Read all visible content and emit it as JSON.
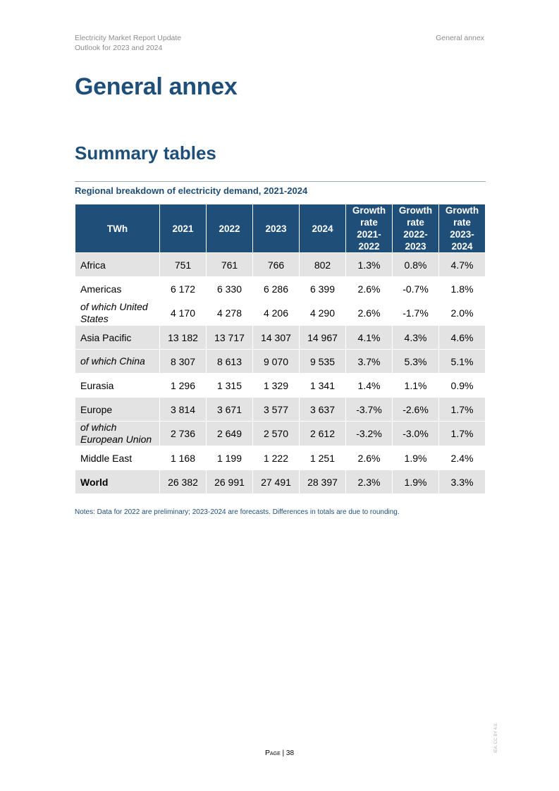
{
  "header": {
    "report_title": "Electricity Market Report Update",
    "subtitle": "Outlook for 2023 and 2024",
    "section": "General annex"
  },
  "page_title": "General annex",
  "section_title": "Summary tables",
  "table": {
    "caption": "Regional breakdown of electricity demand, 2021-2024",
    "headers": [
      "TWh",
      "2021",
      "2022",
      "2023",
      "2024",
      "Growth rate 2021-2022",
      "Growth rate 2022-2023",
      "Growth rate 2023-2024"
    ],
    "rows": [
      {
        "label": "Africa",
        "cells": [
          "751",
          "761",
          "766",
          "802",
          "1.3%",
          "0.8%",
          "4.7%"
        ]
      },
      {
        "label": "Americas",
        "cells": [
          "6 172",
          "6 330",
          "6 286",
          "6 399",
          "2.6%",
          "-0.7%",
          "1.8%"
        ]
      },
      {
        "label": "of which United States",
        "cells": [
          "4 170",
          "4 278",
          "4 206",
          "4 290",
          "2.6%",
          "-1.7%",
          "2.0%"
        ]
      },
      {
        "label": "Asia Pacific",
        "cells": [
          "13 182",
          "13 717",
          "14 307",
          "14 967",
          "4.1%",
          "4.3%",
          "4.6%"
        ]
      },
      {
        "label": "of which China",
        "cells": [
          "8 307",
          "8 613",
          "9 070",
          "9 535",
          "3.7%",
          "5.3%",
          "5.1%"
        ]
      },
      {
        "label": "Eurasia",
        "cells": [
          "1 296",
          "1 315",
          "1 329",
          "1 341",
          "1.4%",
          "1.1%",
          "0.9%"
        ]
      },
      {
        "label": "Europe",
        "cells": [
          "3 814",
          "3 671",
          "3 577",
          "3 637",
          "-3.7%",
          "-2.6%",
          "1.7%"
        ]
      },
      {
        "label": "of which European Union",
        "cells": [
          "2 736",
          "2 649",
          "2 570",
          "2 612",
          "-3.2%",
          "-3.0%",
          "1.7%"
        ]
      },
      {
        "label": "Middle East",
        "cells": [
          "1 168",
          "1 199",
          "1 222",
          "1 251",
          "2.6%",
          "1.9%",
          "2.4%"
        ]
      },
      {
        "label": "World",
        "cells": [
          "26 382",
          "26 991",
          "27 491",
          "28 397",
          "2.3%",
          "1.9%",
          "3.3%"
        ]
      }
    ]
  },
  "notes": "Notes: Data for 2022 are preliminary; 2023-2024 are forecasts. Differences in totals are due to rounding.",
  "footer": {
    "page_word": "Page",
    "separator": "|",
    "page_number": "38"
  },
  "side_text": "IEA. CC BY 4.0."
}
